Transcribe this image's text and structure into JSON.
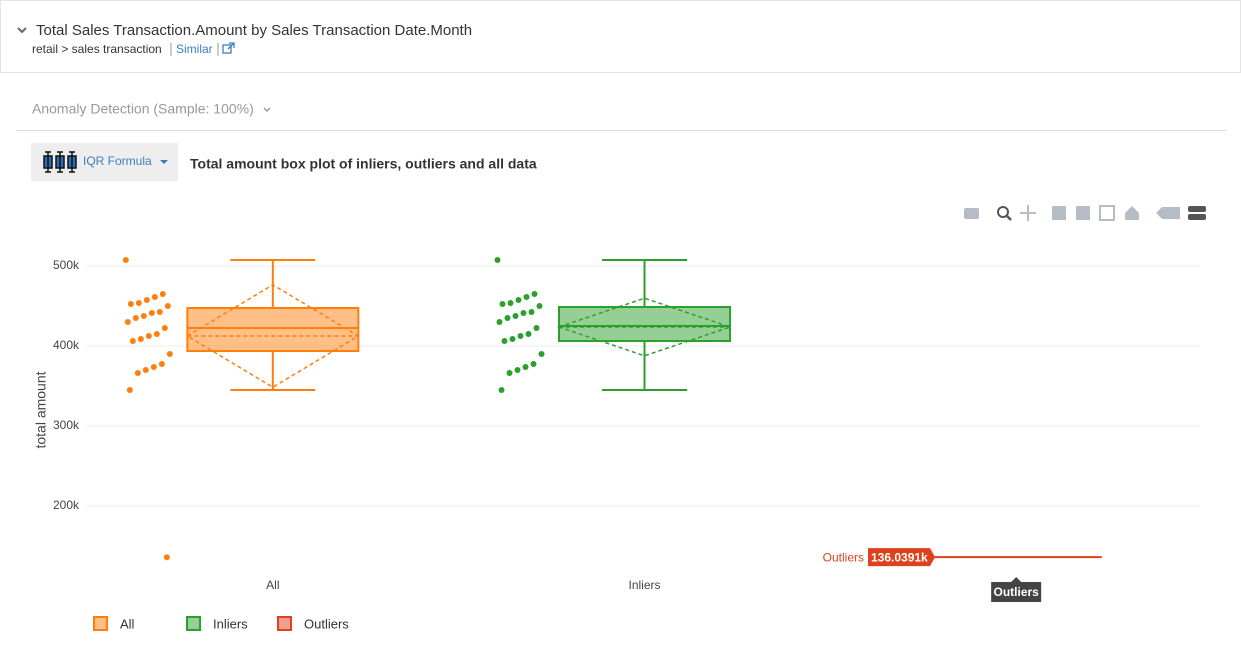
{
  "header": {
    "title": "Total Sales Transaction.Amount by Sales Transaction Date.Month",
    "breadcrumb": "retail > sales transaction",
    "similar": "Similar"
  },
  "toolbar": {
    "analysis": "Anomaly Detection (Sample: 100%)",
    "method": "IQR Formula",
    "plot_title": "Total amount box plot of inliers, outliers and all data"
  },
  "chart_data": {
    "type": "box",
    "y_label": "total amount",
    "ylim": [
      120000,
      520000
    ],
    "yticks": [
      {
        "value": 200000,
        "label": "200k"
      },
      {
        "value": 300000,
        "label": "300k"
      },
      {
        "value": 400000,
        "label": "400k"
      },
      {
        "value": 500000,
        "label": "500k"
      }
    ],
    "grid": true,
    "categories": [
      "All",
      "Inliers",
      "Outliers"
    ],
    "series": [
      {
        "name": "All",
        "color": "#ff7f0e",
        "points": [
          507500,
          465000,
          461250,
          457500,
          453750,
          452500,
          450000,
          442500,
          441250,
          437500,
          435000,
          430000,
          422500,
          415000,
          412500,
          408750,
          406250,
          390000,
          377500,
          373750,
          370000,
          366250,
          345000,
          136000
        ],
        "min": 345000,
        "q1": 393750,
        "median": 422500,
        "q3": 447500,
        "max": 507500,
        "mean": 412500,
        "sd": 64000
      },
      {
        "name": "Inliers",
        "color": "#2ca02c",
        "points": [
          507500,
          465000,
          461250,
          457500,
          453750,
          452500,
          450000,
          442500,
          441250,
          437500,
          435000,
          430000,
          422500,
          415000,
          412500,
          408750,
          406250,
          390000,
          377500,
          373750,
          370000,
          366250,
          345000
        ],
        "min": 345000,
        "q1": 406250,
        "median": 425000,
        "q3": 448750,
        "max": 507500,
        "mean": 423750,
        "sd": 36000
      },
      {
        "name": "Outliers",
        "color": "#e0401c",
        "values": [
          136039.1
        ],
        "value_labels": [
          "136.0391k"
        ]
      }
    ]
  }
}
